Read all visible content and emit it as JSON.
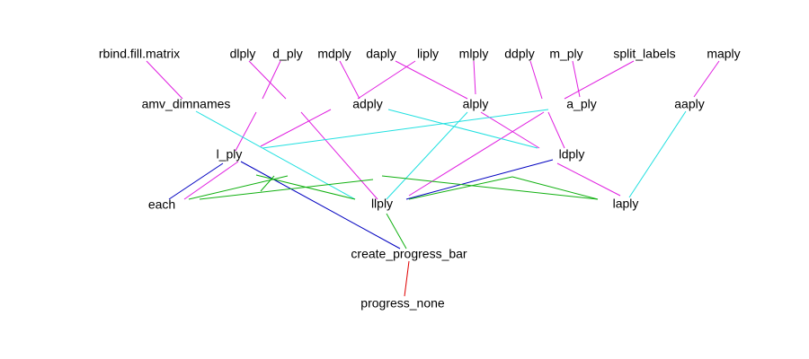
{
  "nodes": [
    {
      "label": "rbind.fill.matrix"
    },
    {
      "label": "dlply"
    },
    {
      "label": "d_ply"
    },
    {
      "label": "mdply"
    },
    {
      "label": "daply"
    },
    {
      "label": "liply"
    },
    {
      "label": "mlply"
    },
    {
      "label": "ddply"
    },
    {
      "label": "m_ply"
    },
    {
      "label": "split_labels"
    },
    {
      "label": "maply"
    },
    {
      "label": "amv_dimnames"
    },
    {
      "label": "adply"
    },
    {
      "label": "alply"
    },
    {
      "label": "a_ply"
    },
    {
      "label": "aaply"
    },
    {
      "label": "l_ply"
    },
    {
      "label": "ldply"
    },
    {
      "label": "each"
    },
    {
      "label": "llply"
    },
    {
      "label": "laply"
    },
    {
      "label": "create_progress_bar"
    },
    {
      "label": "progress_none"
    }
  ]
}
